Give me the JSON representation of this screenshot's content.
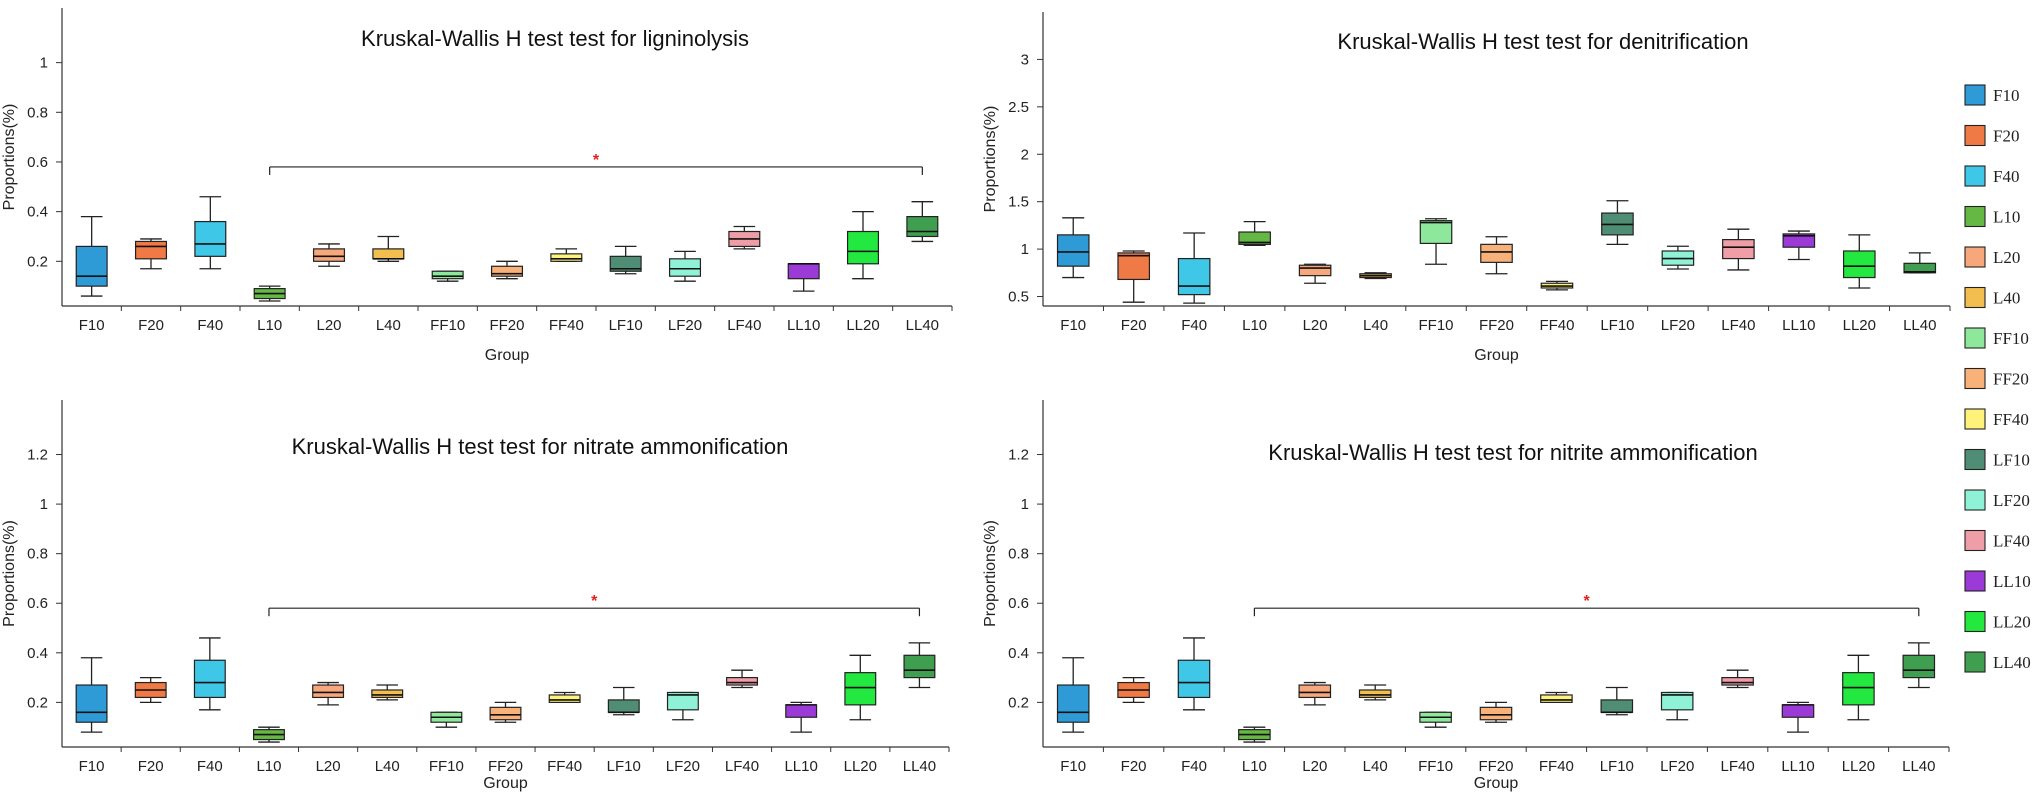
{
  "groups": [
    "F10",
    "F20",
    "F40",
    "L10",
    "L20",
    "L40",
    "FF10",
    "FF20",
    "FF40",
    "LF10",
    "LF20",
    "LF40",
    "LL10",
    "LL20",
    "LL40"
  ],
  "colors": {
    "F10": "#2e9bd6",
    "F20": "#f07a45",
    "F40": "#3fc7e8",
    "L10": "#66b845",
    "L20": "#f7a77c",
    "L40": "#f2bf4e",
    "FF10": "#8de89c",
    "FF20": "#f9b17a",
    "FF40": "#fff27a",
    "LF10": "#4f8d74",
    "LF20": "#8ff2d6",
    "LF40": "#ef9ea8",
    "LL10": "#9b3ad6",
    "LL20": "#22e83f",
    "LL40": "#3f9e4f"
  },
  "legend": {
    "entries": [
      "F10",
      "F20",
      "F40",
      "L10",
      "L20",
      "L40",
      "FF10",
      "FF20",
      "FF40",
      "LF10",
      "LF20",
      "LF40",
      "LL10",
      "LL20",
      "LL40"
    ]
  },
  "chart_data": [
    {
      "type": "box",
      "title": "Kruskal-Wallis H test test for ligninolysis",
      "xlabel": "Group",
      "ylabel": "Proportions(%)",
      "ylim": [
        0.02,
        1.22
      ],
      "yticks": [
        0.2,
        0.4,
        0.6,
        0.8,
        1
      ],
      "ytick_labels": [
        "0.2",
        "0.4",
        "0.6",
        "0.8",
        "1"
      ],
      "boxes": [
        {
          "group": "F10",
          "whislo": 0.06,
          "q1": 0.1,
          "med": 0.14,
          "q3": 0.26,
          "whishi": 0.38
        },
        {
          "group": "F20",
          "whislo": 0.17,
          "q1": 0.21,
          "med": 0.26,
          "q3": 0.28,
          "whishi": 0.29
        },
        {
          "group": "F40",
          "whislo": 0.17,
          "q1": 0.22,
          "med": 0.27,
          "q3": 0.36,
          "whishi": 0.46
        },
        {
          "group": "L10",
          "whislo": 0.04,
          "q1": 0.05,
          "med": 0.07,
          "q3": 0.09,
          "whishi": 0.1
        },
        {
          "group": "L20",
          "whislo": 0.18,
          "q1": 0.2,
          "med": 0.22,
          "q3": 0.25,
          "whishi": 0.27
        },
        {
          "group": "L40",
          "whislo": 0.2,
          "q1": 0.21,
          "med": 0.21,
          "q3": 0.25,
          "whishi": 0.3
        },
        {
          "group": "FF10",
          "whislo": 0.12,
          "q1": 0.13,
          "med": 0.14,
          "q3": 0.16,
          "whishi": 0.16
        },
        {
          "group": "FF20",
          "whislo": 0.13,
          "q1": 0.14,
          "med": 0.15,
          "q3": 0.18,
          "whishi": 0.2
        },
        {
          "group": "FF40",
          "whislo": 0.2,
          "q1": 0.2,
          "med": 0.21,
          "q3": 0.23,
          "whishi": 0.25
        },
        {
          "group": "LF10",
          "whislo": 0.15,
          "q1": 0.16,
          "med": 0.17,
          "q3": 0.22,
          "whishi": 0.26
        },
        {
          "group": "LF20",
          "whislo": 0.12,
          "q1": 0.14,
          "med": 0.17,
          "q3": 0.21,
          "whishi": 0.24
        },
        {
          "group": "LF40",
          "whislo": 0.25,
          "q1": 0.26,
          "med": 0.29,
          "q3": 0.32,
          "whishi": 0.34
        },
        {
          "group": "LL10",
          "whislo": 0.08,
          "q1": 0.13,
          "med": 0.19,
          "q3": 0.19,
          "whishi": 0.19
        },
        {
          "group": "LL20",
          "whislo": 0.13,
          "q1": 0.19,
          "med": 0.24,
          "q3": 0.32,
          "whishi": 0.4
        },
        {
          "group": "LL40",
          "whislo": 0.28,
          "q1": 0.3,
          "med": 0.32,
          "q3": 0.38,
          "whishi": 0.44
        }
      ],
      "significance": {
        "from": "L10",
        "to": "LL40",
        "y": 0.58,
        "label": "*"
      }
    },
    {
      "type": "box",
      "title": "Kruskal-Wallis H test test for denitrification",
      "xlabel": "Group",
      "ylabel": "Proportions(%)",
      "ylim": [
        0.4,
        3.5
      ],
      "yticks": [
        0.5,
        1,
        1.5,
        2,
        2.5,
        3
      ],
      "ytick_labels": [
        "0.5",
        "1",
        "1.5",
        "2",
        "2.5",
        "3"
      ],
      "boxes": [
        {
          "group": "F10",
          "whislo": 0.7,
          "q1": 0.82,
          "med": 0.97,
          "q3": 1.15,
          "whishi": 1.33
        },
        {
          "group": "F20",
          "whislo": 0.44,
          "q1": 0.68,
          "med": 0.93,
          "q3": 0.96,
          "whishi": 0.98
        },
        {
          "group": "F40",
          "whislo": 0.43,
          "q1": 0.52,
          "med": 0.61,
          "q3": 0.9,
          "whishi": 1.17
        },
        {
          "group": "L10",
          "whislo": 1.04,
          "q1": 1.05,
          "med": 1.07,
          "q3": 1.18,
          "whishi": 1.29
        },
        {
          "group": "L20",
          "whislo": 0.64,
          "q1": 0.72,
          "med": 0.8,
          "q3": 0.83,
          "whishi": 0.84
        },
        {
          "group": "L40",
          "whislo": 0.69,
          "q1": 0.7,
          "med": 0.72,
          "q3": 0.74,
          "whishi": 0.75
        },
        {
          "group": "FF10",
          "whislo": 0.84,
          "q1": 1.06,
          "med": 1.28,
          "q3": 1.3,
          "whishi": 1.32
        },
        {
          "group": "FF20",
          "whislo": 0.74,
          "q1": 0.86,
          "med": 0.97,
          "q3": 1.05,
          "whishi": 1.13
        },
        {
          "group": "FF40",
          "whislo": 0.57,
          "q1": 0.59,
          "med": 0.61,
          "q3": 0.64,
          "whishi": 0.66
        },
        {
          "group": "LF10",
          "whislo": 1.05,
          "q1": 1.15,
          "med": 1.26,
          "q3": 1.38,
          "whishi": 1.51
        },
        {
          "group": "LF20",
          "whislo": 0.79,
          "q1": 0.83,
          "med": 0.9,
          "q3": 0.98,
          "whishi": 1.03
        },
        {
          "group": "LF40",
          "whislo": 0.78,
          "q1": 0.9,
          "med": 1.02,
          "q3": 1.1,
          "whishi": 1.21
        },
        {
          "group": "LL10",
          "whislo": 0.89,
          "q1": 1.02,
          "med": 1.14,
          "q3": 1.16,
          "whishi": 1.19
        },
        {
          "group": "LL20",
          "whislo": 0.59,
          "q1": 0.7,
          "med": 0.82,
          "q3": 0.98,
          "whishi": 1.15
        },
        {
          "group": "LL40",
          "whislo": 0.75,
          "q1": 0.75,
          "med": 0.76,
          "q3": 0.85,
          "whishi": 0.96
        }
      ],
      "significance": null
    },
    {
      "type": "box",
      "title": "Kruskal-Wallis H test test for nitrate  ammonification",
      "xlabel": "Group",
      "ylabel": "Proportions(%)",
      "ylim": [
        0.02,
        1.42
      ],
      "yticks": [
        0.2,
        0.4,
        0.6,
        0.8,
        1,
        1.2
      ],
      "ytick_labels": [
        "0.2",
        "0.4",
        "0.6",
        "0.8",
        "1",
        "1.2"
      ],
      "boxes": [
        {
          "group": "F10",
          "whislo": 0.08,
          "q1": 0.12,
          "med": 0.16,
          "q3": 0.27,
          "whishi": 0.38
        },
        {
          "group": "F20",
          "whislo": 0.2,
          "q1": 0.22,
          "med": 0.25,
          "q3": 0.28,
          "whishi": 0.3
        },
        {
          "group": "F40",
          "whislo": 0.17,
          "q1": 0.22,
          "med": 0.28,
          "q3": 0.37,
          "whishi": 0.46
        },
        {
          "group": "L10",
          "whislo": 0.04,
          "q1": 0.05,
          "med": 0.07,
          "q3": 0.09,
          "whishi": 0.1
        },
        {
          "group": "L20",
          "whislo": 0.19,
          "q1": 0.22,
          "med": 0.24,
          "q3": 0.27,
          "whishi": 0.28
        },
        {
          "group": "L40",
          "whislo": 0.21,
          "q1": 0.22,
          "med": 0.23,
          "q3": 0.25,
          "whishi": 0.27
        },
        {
          "group": "FF10",
          "whislo": 0.1,
          "q1": 0.12,
          "med": 0.14,
          "q3": 0.16,
          "whishi": 0.16
        },
        {
          "group": "FF20",
          "whislo": 0.12,
          "q1": 0.13,
          "med": 0.15,
          "q3": 0.18,
          "whishi": 0.2
        },
        {
          "group": "FF40",
          "whislo": 0.2,
          "q1": 0.2,
          "med": 0.21,
          "q3": 0.23,
          "whishi": 0.24
        },
        {
          "group": "LF10",
          "whislo": 0.15,
          "q1": 0.16,
          "med": 0.16,
          "q3": 0.21,
          "whishi": 0.26
        },
        {
          "group": "LF20",
          "whislo": 0.13,
          "q1": 0.17,
          "med": 0.23,
          "q3": 0.24,
          "whishi": 0.24
        },
        {
          "group": "LF40",
          "whislo": 0.26,
          "q1": 0.27,
          "med": 0.28,
          "q3": 0.3,
          "whishi": 0.33
        },
        {
          "group": "LL10",
          "whislo": 0.08,
          "q1": 0.14,
          "med": 0.19,
          "q3": 0.19,
          "whishi": 0.2
        },
        {
          "group": "LL20",
          "whislo": 0.13,
          "q1": 0.19,
          "med": 0.26,
          "q3": 0.32,
          "whishi": 0.39
        },
        {
          "group": "LL40",
          "whislo": 0.26,
          "q1": 0.3,
          "med": 0.33,
          "q3": 0.39,
          "whishi": 0.44
        }
      ],
      "significance": {
        "from": "L10",
        "to": "LL40",
        "y": 0.58,
        "label": "*"
      }
    },
    {
      "type": "box",
      "title": "Kruskal-Wallis H test test for nitrite  ammonification",
      "xlabel": "Group",
      "ylabel": "Proportions(%)",
      "ylim": [
        0.02,
        1.42
      ],
      "yticks": [
        0.2,
        0.4,
        0.6,
        0.8,
        1,
        1.2
      ],
      "ytick_labels": [
        "0.2",
        "0.4",
        "0.6",
        "0.8",
        "1",
        "1.2"
      ],
      "boxes": [
        {
          "group": "F10",
          "whislo": 0.08,
          "q1": 0.12,
          "med": 0.16,
          "q3": 0.27,
          "whishi": 0.38
        },
        {
          "group": "F20",
          "whislo": 0.2,
          "q1": 0.22,
          "med": 0.25,
          "q3": 0.28,
          "whishi": 0.3
        },
        {
          "group": "F40",
          "whislo": 0.17,
          "q1": 0.22,
          "med": 0.28,
          "q3": 0.37,
          "whishi": 0.46
        },
        {
          "group": "L10",
          "whislo": 0.04,
          "q1": 0.05,
          "med": 0.07,
          "q3": 0.09,
          "whishi": 0.1
        },
        {
          "group": "L20",
          "whislo": 0.19,
          "q1": 0.22,
          "med": 0.24,
          "q3": 0.27,
          "whishi": 0.28
        },
        {
          "group": "L40",
          "whislo": 0.21,
          "q1": 0.22,
          "med": 0.23,
          "q3": 0.25,
          "whishi": 0.27
        },
        {
          "group": "FF10",
          "whislo": 0.1,
          "q1": 0.12,
          "med": 0.14,
          "q3": 0.16,
          "whishi": 0.16
        },
        {
          "group": "FF20",
          "whislo": 0.12,
          "q1": 0.13,
          "med": 0.15,
          "q3": 0.18,
          "whishi": 0.2
        },
        {
          "group": "FF40",
          "whislo": 0.2,
          "q1": 0.2,
          "med": 0.21,
          "q3": 0.23,
          "whishi": 0.24
        },
        {
          "group": "LF10",
          "whislo": 0.15,
          "q1": 0.16,
          "med": 0.16,
          "q3": 0.21,
          "whishi": 0.26
        },
        {
          "group": "LF20",
          "whislo": 0.13,
          "q1": 0.17,
          "med": 0.23,
          "q3": 0.24,
          "whishi": 0.24
        },
        {
          "group": "LF40",
          "whislo": 0.26,
          "q1": 0.27,
          "med": 0.28,
          "q3": 0.3,
          "whishi": 0.33
        },
        {
          "group": "LL10",
          "whislo": 0.08,
          "q1": 0.14,
          "med": 0.19,
          "q3": 0.19,
          "whishi": 0.2
        },
        {
          "group": "LL20",
          "whislo": 0.13,
          "q1": 0.19,
          "med": 0.26,
          "q3": 0.32,
          "whishi": 0.39
        },
        {
          "group": "LL40",
          "whislo": 0.26,
          "q1": 0.3,
          "med": 0.33,
          "q3": 0.39,
          "whishi": 0.44
        }
      ],
      "significance": {
        "from": "L10",
        "to": "LL40",
        "y": 0.58,
        "label": "*"
      }
    }
  ]
}
